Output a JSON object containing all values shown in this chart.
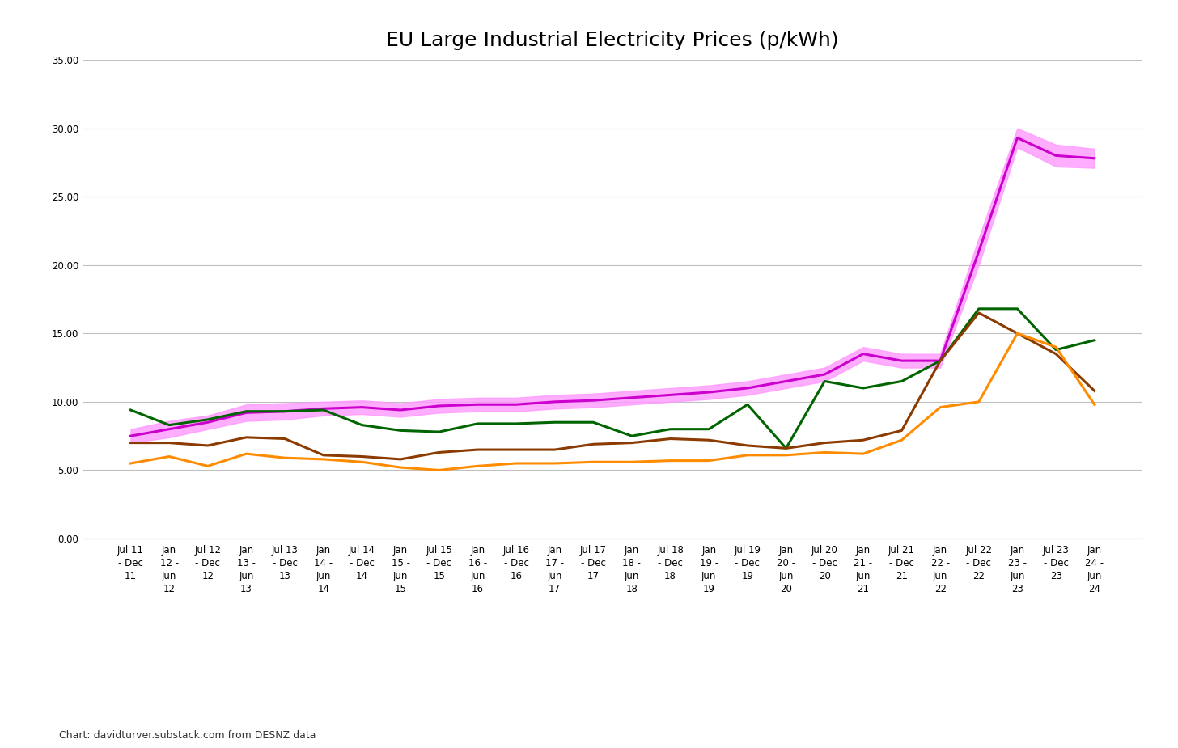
{
  "title": "EU Large Industrial Electricity Prices (p/kWh)",
  "footnote": "Chart: davidturver.substack.com from DESNZ data",
  "x_labels": [
    "Jul 11\n- Dec\n11",
    "Jan\n12 -\nJun\n12",
    "Jul 12\n- Dec\n12",
    "Jan\n13 -\nJun\n13",
    "Jul 13\n- Dec\n13",
    "Jan\n14 -\nJun\n14",
    "Jul 14\n- Dec\n14",
    "Jan\n15 -\nJun\n15",
    "Jul 15\n- Dec\n15",
    "Jan\n16 -\nJun\n16",
    "Jul 16\n- Dec\n16",
    "Jan\n17 -\nJun\n17",
    "Jul 17\n- Dec\n17",
    "Jan\n18 -\nJun\n18",
    "Jul 18\n- Dec\n18",
    "Jan\n19 -\nJun\n19",
    "Jul 19\n- Dec\n19",
    "Jan\n20 -\nJun\n20",
    "Jul 20\n- Dec\n20",
    "Jan\n21 -\nJun\n21",
    "Jul 21\n- Dec\n21",
    "Jan\n22 -\nJun\n22",
    "Jul 22\n- Dec\n22",
    "Jan\n23 -\nJun\n23",
    "Jul 23\n- Dec\n23",
    "Jan\n24 -\nJun\n24"
  ],
  "france": [
    5.5,
    6.0,
    5.3,
    6.2,
    5.9,
    5.8,
    5.6,
    5.2,
    5.0,
    5.3,
    5.5,
    5.5,
    5.6,
    5.6,
    5.7,
    5.7,
    6.1,
    6.1,
    6.3,
    6.2,
    7.2,
    9.6,
    10.0,
    15.0,
    14.0,
    9.8
  ],
  "germany": [
    9.4,
    8.3,
    8.7,
    9.3,
    9.3,
    9.4,
    8.3,
    7.9,
    7.8,
    8.4,
    8.4,
    8.5,
    8.5,
    7.5,
    8.0,
    8.0,
    9.8,
    6.6,
    11.5,
    11.0,
    11.5,
    13.0,
    16.8,
    16.8,
    13.8,
    14.5
  ],
  "uk": [
    7.5,
    8.0,
    8.5,
    9.2,
    9.3,
    9.5,
    9.6,
    9.4,
    9.7,
    9.8,
    9.8,
    10.0,
    10.1,
    10.3,
    10.5,
    10.7,
    11.0,
    11.5,
    12.0,
    13.5,
    13.0,
    13.0,
    21.0,
    29.3,
    28.0,
    27.8
  ],
  "uk_band_upper": [
    8.0,
    8.6,
    9.0,
    9.8,
    9.9,
    10.0,
    10.1,
    9.9,
    10.2,
    10.3,
    10.3,
    10.5,
    10.6,
    10.8,
    11.0,
    11.2,
    11.5,
    12.0,
    12.5,
    14.0,
    13.5,
    13.5,
    22.0,
    30.0,
    28.8,
    28.5
  ],
  "uk_band_lower": [
    7.0,
    7.4,
    8.0,
    8.6,
    8.7,
    9.0,
    9.1,
    8.9,
    9.2,
    9.3,
    9.3,
    9.5,
    9.6,
    9.8,
    10.0,
    10.2,
    10.5,
    11.0,
    11.5,
    13.0,
    12.5,
    12.5,
    20.0,
    28.6,
    27.2,
    27.1
  ],
  "eu14_median": [
    7.0,
    7.0,
    6.8,
    7.4,
    7.3,
    6.1,
    6.0,
    5.8,
    6.3,
    6.5,
    6.5,
    6.5,
    6.9,
    7.0,
    7.3,
    7.2,
    6.8,
    6.6,
    7.0,
    7.2,
    7.9,
    13.0,
    16.5,
    15.0,
    13.5,
    10.8
  ],
  "france_color": "#FF8C00",
  "germany_color": "#006400",
  "uk_color": "#CC00CC",
  "uk_band_color": "#FF99FF",
  "eu14_color": "#8B3A00",
  "ylim": [
    0,
    35
  ],
  "yticks": [
    0.0,
    5.0,
    10.0,
    15.0,
    20.0,
    25.0,
    30.0,
    35.0
  ],
  "bg_color": "#FFFFFF",
  "grid_color": "#C0C0C0",
  "title_fontsize": 18,
  "tick_fontsize": 8.5,
  "legend_fontsize": 11,
  "footnote_fontsize": 9
}
